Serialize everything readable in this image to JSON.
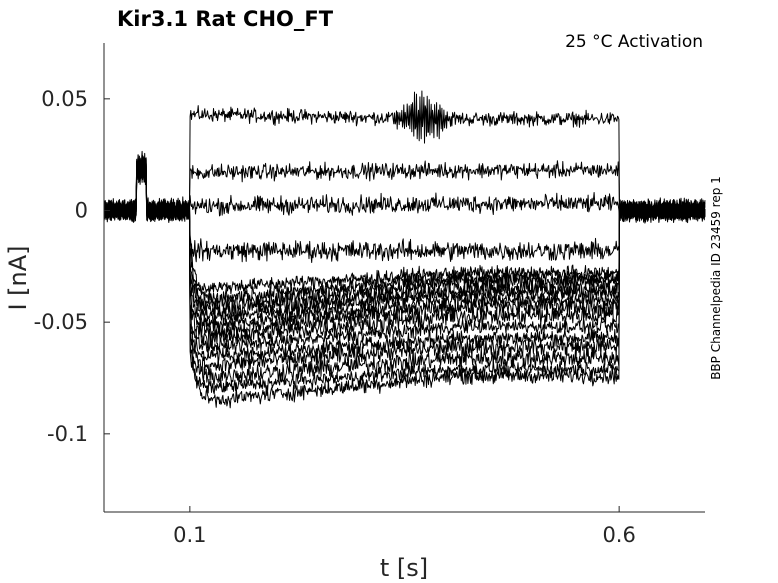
{
  "chart_data": {
    "type": "line",
    "title": "Kir3.1  Rat  CHO_FT",
    "annotation": "25 °C  Activation",
    "side_label": "BBP Channelpedia ID 23459 rep 1",
    "xlabel": "t [s]",
    "ylabel": "I [nA]",
    "xlim": [
      0.0,
      0.7
    ],
    "ylim": [
      -0.135,
      0.075
    ],
    "xticks": [
      0.1,
      0.6
    ],
    "xtick_labels": [
      "0.1",
      "0.6"
    ],
    "yticks": [
      0.05,
      0,
      -0.05,
      -0.1
    ],
    "ytick_labels": [
      "0.05",
      "0",
      "-0.05",
      "-0.1"
    ],
    "grid": false,
    "legend": "none",
    "line_color": "#000000",
    "step_on": 0.1,
    "step_off": 0.6,
    "noise_amplitude": 0.003,
    "baseline_level": 0.0,
    "baseline_artifact": {
      "t_start": 0.038,
      "t_end": 0.049,
      "level": 0.022
    },
    "oscillation_burst": {
      "t_center": 0.37,
      "t_halfwidth": 0.04,
      "amplitude": 0.012
    },
    "series": [
      {
        "start": 0.043,
        "end": 0.041,
        "peak": 0.0
      },
      {
        "start": 0.017,
        "end": 0.018,
        "peak": 0.0
      },
      {
        "start": 0.002,
        "end": 0.003,
        "peak": 0.0
      },
      {
        "start": -0.018,
        "end": -0.018,
        "peak": 0.0
      },
      {
        "start": -0.035,
        "end": -0.028,
        "peak": 0.0
      },
      {
        "start": -0.04,
        "end": -0.03,
        "peak": -0.01
      },
      {
        "start": -0.043,
        "end": -0.032,
        "peak": -0.015
      },
      {
        "start": -0.046,
        "end": -0.035,
        "peak": -0.02
      },
      {
        "start": -0.049,
        "end": -0.037,
        "peak": -0.025
      },
      {
        "start": -0.052,
        "end": -0.04,
        "peak": -0.03
      },
      {
        "start": -0.055,
        "end": -0.043,
        "peak": -0.035
      },
      {
        "start": -0.058,
        "end": -0.047,
        "peak": -0.04
      },
      {
        "start": -0.062,
        "end": -0.052,
        "peak": -0.045
      },
      {
        "start": -0.066,
        "end": -0.057,
        "peak": -0.05
      },
      {
        "start": -0.07,
        "end": -0.061,
        "peak": -0.055
      },
      {
        "start": -0.075,
        "end": -0.066,
        "peak": -0.06
      },
      {
        "start": -0.08,
        "end": -0.071,
        "peak": -0.065
      },
      {
        "start": -0.086,
        "end": -0.074,
        "peak": -0.05
      }
    ]
  }
}
